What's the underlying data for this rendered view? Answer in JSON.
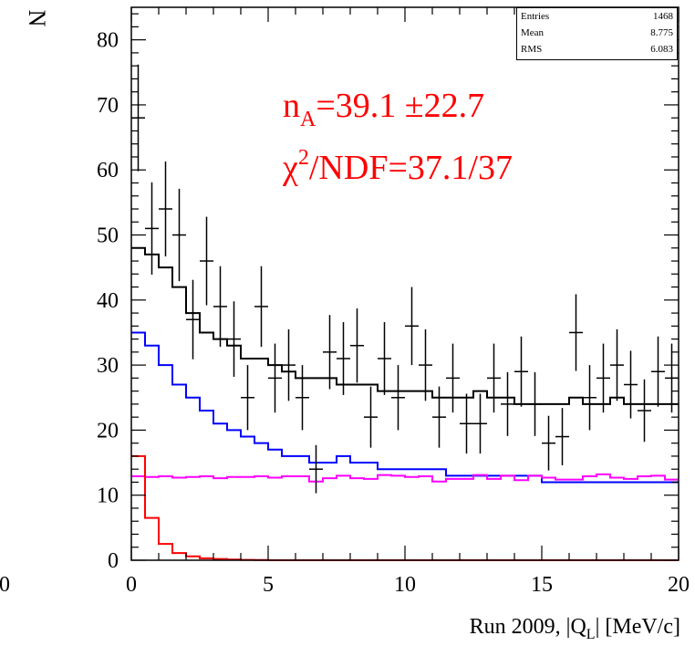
{
  "stats": {
    "rows": [
      {
        "label": "Entries",
        "value": "1468"
      },
      {
        "label": "Mean",
        "value": "8.775"
      },
      {
        "label": "RMS",
        "value": "6.083"
      }
    ]
  },
  "annotations": {
    "na_prefix": "n",
    "na_sub": "A",
    "na_value": "=39.1 ±22.7",
    "chi_symbol": "χ",
    "chi_sup": "2",
    "chi_value": "/NDF=37.1/37",
    "color": "#ff0000"
  },
  "axes": {
    "ylabel": "N",
    "xlabel_prefix": "Run 2009, |Q",
    "xlabel_sub": "L",
    "xlabel_suffix": "| [MeV/c]",
    "extra_tick_label": "0"
  },
  "chart_data": {
    "type": "line",
    "xlim": [
      0,
      20
    ],
    "ylim": [
      0,
      85
    ],
    "xticks": [
      0,
      5,
      10,
      15,
      20
    ],
    "yticks": [
      0,
      10,
      20,
      30,
      40,
      50,
      60,
      70,
      80
    ],
    "bin_width": 0.5,
    "data_points": {
      "name": "Data",
      "color": "#000000",
      "x": [
        0.25,
        0.75,
        1.25,
        1.75,
        2.25,
        2.75,
        3.25,
        3.75,
        4.25,
        4.75,
        5.25,
        5.75,
        6.25,
        6.75,
        7.25,
        7.75,
        8.25,
        8.75,
        9.25,
        9.75,
        10.25,
        10.75,
        11.25,
        11.75,
        12.25,
        12.75,
        13.25,
        13.75,
        14.25,
        14.75,
        15.25,
        15.75,
        16.25,
        16.75,
        17.25,
        17.75,
        18.25,
        18.75,
        19.25,
        19.75
      ],
      "y": [
        68,
        51,
        54,
        50,
        37,
        46,
        39,
        34,
        25,
        39,
        28,
        30,
        25,
        14,
        32,
        31,
        33,
        22,
        31,
        25,
        36,
        30,
        22,
        28,
        21,
        21,
        28,
        24,
        29,
        24,
        18,
        19,
        35,
        25,
        28,
        30,
        27,
        23,
        29,
        28
      ],
      "err": [
        8.2,
        7.1,
        7.3,
        7.1,
        6.1,
        6.8,
        6.2,
        5.8,
        5.0,
        6.2,
        5.3,
        5.5,
        5.0,
        3.7,
        5.7,
        5.6,
        5.7,
        4.7,
        5.6,
        5.0,
        6.0,
        5.5,
        4.7,
        5.3,
        4.6,
        4.6,
        5.3,
        4.9,
        5.4,
        4.9,
        4.2,
        4.4,
        5.9,
        5.0,
        5.3,
        5.5,
        5.2,
        4.8,
        5.4,
        5.3
      ]
    },
    "series": [
      {
        "color": "#000000",
        "values": [
          48,
          47,
          45,
          42,
          38,
          35,
          34,
          33,
          31,
          31,
          30,
          29,
          28,
          28,
          28,
          27,
          27,
          27,
          26,
          26,
          26,
          26,
          25,
          25,
          25,
          26,
          25,
          25,
          24,
          24,
          24,
          24,
          25,
          24,
          24,
          25,
          24,
          24,
          24,
          24
        ]
      },
      {
        "color": "#0000ff",
        "values": [
          35,
          33,
          30,
          27,
          25,
          23,
          21,
          20,
          19,
          18,
          17,
          16,
          16,
          15,
          15,
          16,
          15,
          15,
          14,
          14,
          14,
          14,
          14,
          13,
          13,
          13,
          13,
          13,
          13,
          13,
          12,
          12,
          12,
          12,
          12,
          12,
          12,
          12,
          12,
          12
        ]
      },
      {
        "color": "#ff00ff",
        "values": [
          12.9,
          12.8,
          12.9,
          12.7,
          12.8,
          12.9,
          12.6,
          12.8,
          12.8,
          12.9,
          12.7,
          12.9,
          12.9,
          12.1,
          12.6,
          13.0,
          12.6,
          12.5,
          13.1,
          13.0,
          12.8,
          12.9,
          12.1,
          12.5,
          12.5,
          13.1,
          12.5,
          13.0,
          12.3,
          13.0,
          12.7,
          12.4,
          12.4,
          12.9,
          13.2,
          12.7,
          12.5,
          12.9,
          13.0,
          12.4
        ]
      },
      {
        "color": "#ff0000",
        "values": [
          16,
          6.5,
          2.5,
          1.1,
          0.6,
          0.3,
          0.2,
          0.1,
          0.05,
          0.03,
          0,
          0,
          0,
          0,
          0,
          0,
          0,
          0,
          0,
          0,
          0,
          0,
          0,
          0,
          0,
          0,
          0,
          0,
          0,
          0,
          0,
          0,
          0,
          0,
          0,
          0,
          0,
          0,
          0,
          0
        ]
      }
    ]
  }
}
